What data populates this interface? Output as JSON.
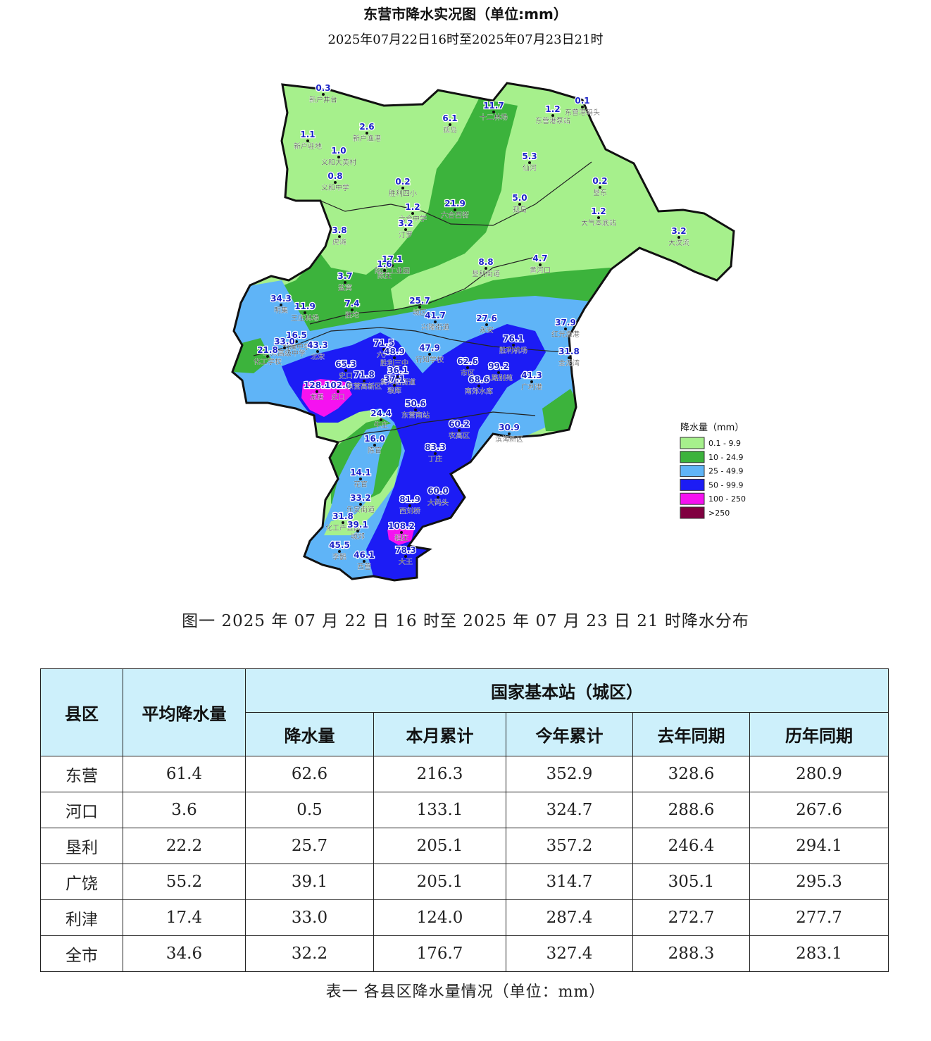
{
  "map": {
    "title": "东营市降水实况图（单位:mm）",
    "subtitle": "2025年07月22日16时至2025年07月23日21时",
    "legend": {
      "title": "降水量（mm）",
      "items": [
        {
          "label": "0.1 - 9.9",
          "color": "#a6f08c"
        },
        {
          "label": "10 - 24.9",
          "color": "#3cb33c"
        },
        {
          "label": "25 - 49.9",
          "color": "#5fb4f7"
        },
        {
          "label": "50 - 99.9",
          "color": "#1c1cf5"
        },
        {
          "label": "100 - 250",
          "color": "#f512f0"
        },
        {
          "label": ">250",
          "color": "#800040"
        }
      ]
    },
    "stations": [
      {
        "name": "新户井台",
        "value": "0.3"
      },
      {
        "name": "新户渔港",
        "value": "2.6"
      },
      {
        "name": "新户驻地",
        "value": "1.1"
      },
      {
        "name": "义和大英村",
        "value": "1.0"
      },
      {
        "name": "义和中学",
        "value": "0.8"
      },
      {
        "name": "胜利四小",
        "value": "0.2"
      },
      {
        "name": "六合中学",
        "value": "1.2"
      },
      {
        "name": "汀罗",
        "value": "3.2"
      },
      {
        "name": "孤岛",
        "value": "6.1"
      },
      {
        "name": "六合西街",
        "value": "21.9"
      },
      {
        "name": "十二林场",
        "value": "11.7"
      },
      {
        "name": "东营港泵站",
        "value": "1.2"
      },
      {
        "name": "东营港码头",
        "value": "0.1"
      },
      {
        "name": "仙河",
        "value": "5.3"
      },
      {
        "name": "孤岛",
        "value": "5.0"
      },
      {
        "name": "垦东",
        "value": "0.2"
      },
      {
        "name": "大气本底站",
        "value": "1.2"
      },
      {
        "name": "大汶流",
        "value": "3.2"
      },
      {
        "name": "虎滩",
        "value": "3.8"
      },
      {
        "name": "陈庄工业园",
        "value": "17.1"
      },
      {
        "name": "陈庄",
        "value": "1.6"
      },
      {
        "name": "盐窝",
        "value": "3.7"
      },
      {
        "name": "垦利街道",
        "value": "8.8"
      },
      {
        "name": "黄河口",
        "value": "4.7"
      },
      {
        "name": "明集",
        "value": "34.3"
      },
      {
        "name": "王庄林场",
        "value": "11.9"
      },
      {
        "name": "胜坨",
        "value": "7.4"
      },
      {
        "name": "城区",
        "value": "25.7"
      },
      {
        "name": "兴隆街道",
        "value": "41.7"
      },
      {
        "name": "永安",
        "value": "27.6"
      },
      {
        "name": "红光渔港",
        "value": "37.9"
      },
      {
        "name": "金泥湾",
        "value": "31.8"
      },
      {
        "name": "利津中学",
        "value": "16.5"
      },
      {
        "name": "北宋高级中学",
        "value": "33.0"
      },
      {
        "name": "北宋",
        "value": "43.3"
      },
      {
        "name": "化工学校",
        "value": "21.8"
      },
      {
        "name": "行知学校",
        "value": "47.9"
      },
      {
        "name": "史口",
        "value": "65.3"
      },
      {
        "name": "龙居",
        "value": "128.4"
      },
      {
        "name": "史口",
        "value": "102.0"
      },
      {
        "name": "东营高新区",
        "value": "71.8"
      },
      {
        "name": "六户",
        "value": "71.5"
      },
      {
        "name": "胜利三中",
        "value": "48.9"
      },
      {
        "name": "黄河路街道",
        "value": "36.1"
      },
      {
        "name": "粮库",
        "value": "37.1"
      },
      {
        "name": "胜利机场",
        "value": "76.1"
      },
      {
        "name": "市区",
        "value": "62.6"
      },
      {
        "name": "八路别苑",
        "value": "99.2"
      },
      {
        "name": "南郊水库",
        "value": "68.6"
      },
      {
        "name": "广利港",
        "value": "41.3"
      },
      {
        "name": "东营南站",
        "value": "50.6"
      },
      {
        "name": "牛庄",
        "value": "24.4"
      },
      {
        "name": "农高区",
        "value": "60.2"
      },
      {
        "name": "滨海新区",
        "value": "30.9"
      },
      {
        "name": "陈官",
        "value": "16.0"
      },
      {
        "name": "丁庄",
        "value": "83.3"
      },
      {
        "name": "花官",
        "value": "14.1"
      },
      {
        "name": "乐安街道",
        "value": "33.2"
      },
      {
        "name": "西刘桥",
        "value": "81.9"
      },
      {
        "name": "大码头",
        "value": "60.0"
      },
      {
        "name": "化工产业园",
        "value": "31.8"
      },
      {
        "name": "城郊",
        "value": "39.1"
      },
      {
        "name": "稻庄",
        "value": "108.2"
      },
      {
        "name": "李鹊",
        "value": "45.5"
      },
      {
        "name": "西营",
        "value": "46.1"
      },
      {
        "name": "大王",
        "value": "78.3"
      }
    ]
  },
  "figure_caption": "图一 2025 年 07 月 22 日 16 时至 2025 年 07 月 23 日 21 时降水分布",
  "table": {
    "header": {
      "county": "县区",
      "avg": "平均降水量",
      "station_group": "国家基本站（城区）",
      "precip": "降水量",
      "month_total": "本月累计",
      "year_total": "今年累计",
      "last_year": "去年同期",
      "normal": "历年同期"
    },
    "rows": [
      [
        "东营",
        "61.4",
        "62.6",
        "216.3",
        "352.9",
        "328.6",
        "280.9"
      ],
      [
        "河口",
        "3.6",
        "0.5",
        "133.1",
        "324.7",
        "288.6",
        "267.6"
      ],
      [
        "垦利",
        "22.2",
        "25.7",
        "205.1",
        "357.2",
        "246.4",
        "294.1"
      ],
      [
        "广饶",
        "55.2",
        "39.1",
        "205.1",
        "314.7",
        "305.1",
        "295.3"
      ],
      [
        "利津",
        "17.4",
        "33.0",
        "124.0",
        "287.4",
        "272.7",
        "277.7"
      ],
      [
        "全市",
        "34.6",
        "32.2",
        "176.7",
        "327.4",
        "288.3",
        "283.1"
      ]
    ],
    "caption": "表一 各县区降水量情况（单位：mm）"
  }
}
